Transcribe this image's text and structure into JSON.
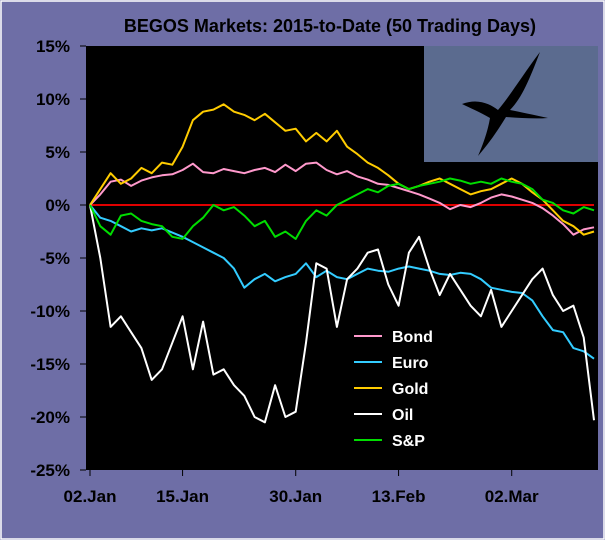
{
  "chart_data": {
    "type": "line",
    "title": "BEGOS Markets: 2015-to-Date (50 Trading Days)",
    "xlabel": "",
    "ylabel": "",
    "ylim": [
      -25,
      15
    ],
    "yticks": [
      15,
      10,
      5,
      0,
      -5,
      -10,
      -15,
      -20,
      -25
    ],
    "ytick_labels": [
      "15%",
      "10%",
      "5%",
      "0%",
      "-5%",
      "-10%",
      "-15%",
      "-20%",
      "-25%"
    ],
    "x_ticks": [
      {
        "label": "02.Jan",
        "index": 0
      },
      {
        "label": "15.Jan",
        "index": 9
      },
      {
        "label": "30.Jan",
        "index": 20
      },
      {
        "label": "13.Feb",
        "index": 30
      },
      {
        "label": "02.Mar",
        "index": 41
      }
    ],
    "num_points": 50,
    "zero_line": {
      "value": 0,
      "color": "#e00000"
    },
    "legend_position": "bottom-center",
    "plot_background": "#000000",
    "series": [
      {
        "name": "Bond",
        "color": "#ff99cc",
        "values": [
          0,
          1,
          2.2,
          2.4,
          1.8,
          2.3,
          2.6,
          2.8,
          2.9,
          3.3,
          3.9,
          3.1,
          3.0,
          3.4,
          3.2,
          3.0,
          3.3,
          3.5,
          3.1,
          3.8,
          3.2,
          3.9,
          4.0,
          3.3,
          2.9,
          3.2,
          2.7,
          2.4,
          2.0,
          1.9,
          1.6,
          1.3,
          1.0,
          0.6,
          0.2,
          -0.4,
          0.0,
          -0.2,
          0.2,
          0.7,
          1.0,
          0.8,
          0.5,
          0.2,
          -0.3,
          -1.0,
          -1.8,
          -2.8,
          -2.3,
          -2.1
        ]
      },
      {
        "name": "Euro",
        "color": "#33ccff",
        "values": [
          0,
          -1.2,
          -1.5,
          -2.0,
          -2.5,
          -2.2,
          -2.4,
          -2.2,
          -2.6,
          -3.0,
          -3.5,
          -4.0,
          -4.5,
          -5.0,
          -6.0,
          -7.8,
          -7.0,
          -6.5,
          -7.2,
          -6.8,
          -6.5,
          -5.5,
          -6.8,
          -6.2,
          -6.8,
          -7.0,
          -6.5,
          -6.0,
          -6.2,
          -6.3,
          -6.0,
          -5.8,
          -6.0,
          -6.2,
          -6.5,
          -6.6,
          -6.4,
          -6.5,
          -7.0,
          -7.8,
          -8.0,
          -8.2,
          -8.3,
          -9.0,
          -10.5,
          -11.8,
          -12.0,
          -13.5,
          -13.8,
          -14.5
        ]
      },
      {
        "name": "Gold",
        "color": "#ffcc00",
        "values": [
          0,
          1.5,
          3.0,
          2.0,
          2.5,
          3.5,
          3.0,
          4.0,
          3.8,
          5.5,
          8.0,
          8.8,
          9.0,
          9.5,
          8.8,
          8.5,
          8.0,
          8.6,
          7.8,
          7.0,
          7.2,
          6.0,
          6.8,
          6.0,
          7.0,
          5.5,
          4.8,
          4.0,
          3.5,
          2.8,
          2.0,
          1.5,
          1.8,
          2.2,
          2.5,
          2.0,
          1.5,
          1.0,
          1.3,
          1.5,
          2.0,
          2.5,
          2.0,
          1.2,
          0.5,
          -0.5,
          -1.5,
          -2.0,
          -2.8,
          -2.5
        ]
      },
      {
        "name": "Oil",
        "color": "#ffffff",
        "values": [
          0,
          -5,
          -11.5,
          -10.5,
          -12,
          -13.5,
          -16.5,
          -15.5,
          -13,
          -10.5,
          -15.5,
          -11,
          -16,
          -15.5,
          -17,
          -18,
          -20,
          -20.5,
          -17,
          -20,
          -19.5,
          -13,
          -5.5,
          -6,
          -11.5,
          -7,
          -6,
          -4.5,
          -4.2,
          -7.5,
          -9.5,
          -4.5,
          -3.0,
          -6.0,
          -8.5,
          -6.5,
          -8.0,
          -9.5,
          -10.5,
          -8.0,
          -11.5,
          -10.0,
          -8.5,
          -7.0,
          -6.0,
          -8.5,
          -10.0,
          -9.5,
          -12.5,
          -20.3
        ]
      },
      {
        "name": "S&P",
        "color": "#00dd00",
        "values": [
          0,
          -2.0,
          -2.8,
          -1.0,
          -0.8,
          -1.5,
          -1.8,
          -2.0,
          -3.0,
          -3.2,
          -2.0,
          -1.2,
          0.0,
          -0.5,
          -0.2,
          -1.0,
          -2.0,
          -1.5,
          -3.0,
          -2.5,
          -3.2,
          -1.5,
          -0.5,
          -1.0,
          0.0,
          0.5,
          1.0,
          1.5,
          1.2,
          1.8,
          2.0,
          1.5,
          1.8,
          2.0,
          2.2,
          2.5,
          2.3,
          2.0,
          2.2,
          2.0,
          2.5,
          2.2,
          2.0,
          1.5,
          0.5,
          0.2,
          -0.5,
          -0.8,
          -0.2,
          -0.5
        ]
      }
    ]
  }
}
